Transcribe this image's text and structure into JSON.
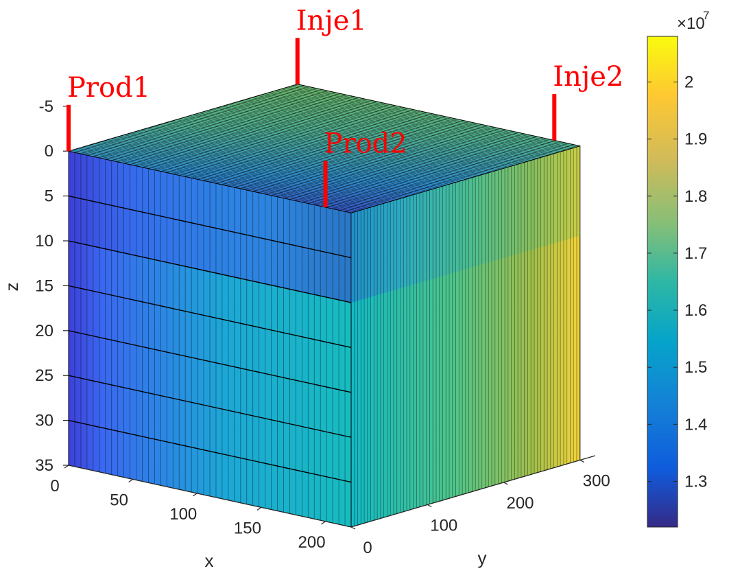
{
  "chart_data": {
    "type": "heatmap",
    "subtype": "3d-block",
    "title": "",
    "xlabel": "x",
    "ylabel": "y",
    "zlabel": "z",
    "xlim": [
      0,
      220
    ],
    "ylim": [
      0,
      320
    ],
    "zlim": [
      -8,
      35
    ],
    "z_reversed": true,
    "x_ticks": [
      0,
      50,
      100,
      150,
      200
    ],
    "y_ticks": [
      0,
      100,
      200,
      300
    ],
    "z_ticks": [
      -5,
      0,
      5,
      10,
      15,
      20,
      25,
      30,
      35
    ],
    "z_layers": [
      0,
      5,
      10,
      15,
      20,
      25,
      30,
      35
    ],
    "colormap": "parula",
    "colorbar": {
      "min": 1.22,
      "max": 2.08,
      "ticks": [
        1.3,
        1.4,
        1.5,
        1.6,
        1.7,
        1.8,
        1.9,
        2
      ],
      "tick_labels": [
        "1.3",
        "1.4",
        "1.5",
        "1.6",
        "1.7",
        "1.8",
        "1.9",
        "2"
      ],
      "exponent_base": "×10",
      "exponent_power": "7"
    },
    "surface_field": [
      {
        "x": 0,
        "y": 0,
        "value": 1.33
      },
      {
        "x": 0,
        "y": 100,
        "value": 1.43
      },
      {
        "x": 0,
        "y": 200,
        "value": 1.6
      },
      {
        "x": 0,
        "y": 300,
        "value": 1.74
      },
      {
        "x": 200,
        "y": 0,
        "value": 1.28
      },
      {
        "x": 200,
        "y": 100,
        "value": 1.45
      },
      {
        "x": 200,
        "y": 200,
        "value": 1.58
      },
      {
        "x": 200,
        "y": 300,
        "value": 1.75
      }
    ],
    "wells": [
      {
        "name": "Prod1",
        "x": 0,
        "y": 0
      },
      {
        "name": "Inje1",
        "x": 0,
        "y": 300
      },
      {
        "name": "Prod2",
        "x": 200,
        "y": 0
      },
      {
        "name": "Inje2",
        "x": 200,
        "y": 300
      }
    ],
    "grid": true,
    "legend": "colorbar-right"
  }
}
